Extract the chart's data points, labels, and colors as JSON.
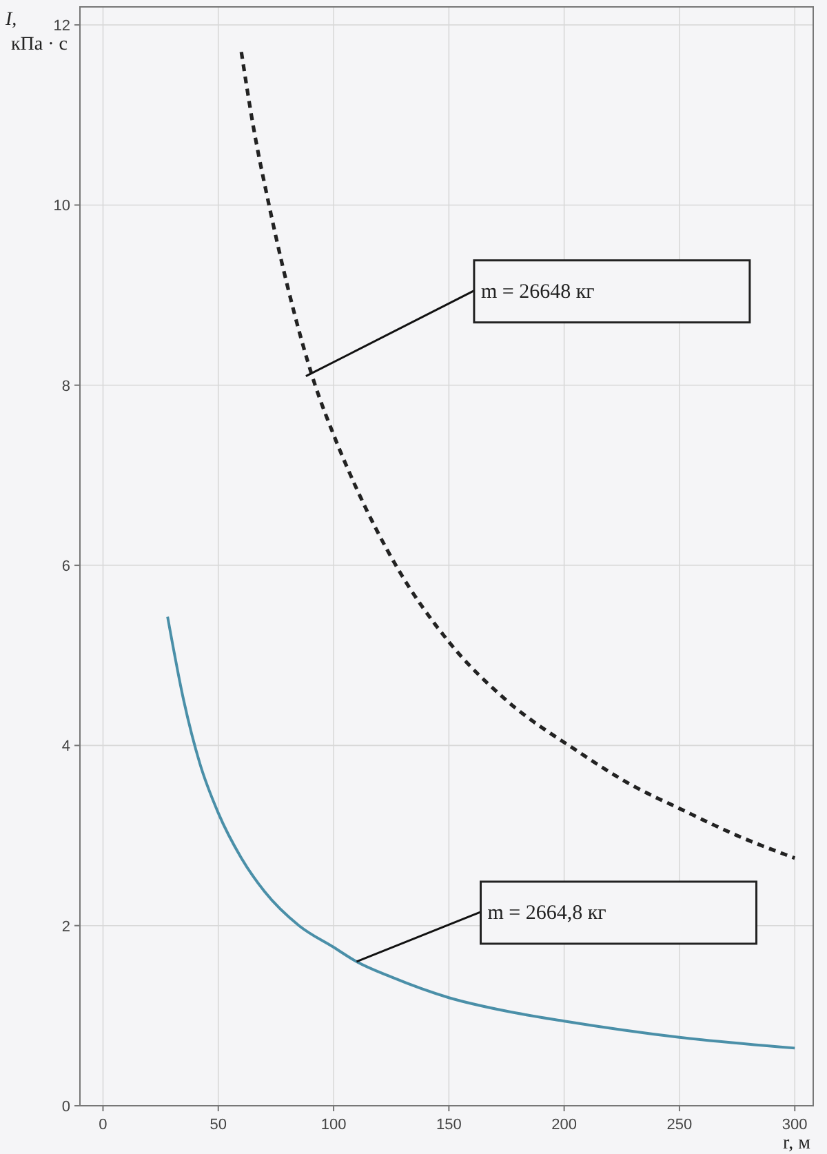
{
  "chart_data": {
    "type": "line",
    "xlabel": "r, м",
    "ylabel": "I, кПа · с",
    "xlim": [
      -10,
      308
    ],
    "ylim": [
      0,
      12.2
    ],
    "xticks": [
      0,
      50,
      100,
      150,
      200,
      250,
      300
    ],
    "yticks": [
      0,
      2,
      4,
      6,
      8,
      10,
      12
    ],
    "grid": true,
    "marker": "none",
    "series": [
      {
        "color": "#222222",
        "line_style": "dashed",
        "x": [
          60,
          65,
          72,
          80,
          92,
          100,
          110,
          127,
          150,
          175,
          205,
          230,
          250,
          275,
          300
        ],
        "values": [
          11.7,
          10.9,
          10,
          9.1,
          8,
          7.45,
          6.85,
          6,
          5.15,
          4.5,
          3.95,
          3.55,
          3.3,
          3,
          2.75
        ]
      },
      {
        "color": "#4a8fa8",
        "line_style": "solid",
        "x": [
          28,
          35,
          42,
          50,
          60,
          70,
          85,
          100,
          110,
          125,
          150,
          175,
          200,
          250,
          300
        ],
        "values": [
          5.43,
          4.5,
          3.8,
          3.25,
          2.75,
          2.38,
          2,
          1.76,
          1.6,
          1.43,
          1.2,
          1.05,
          0.94,
          0.76,
          0.64
        ]
      }
    ],
    "annotations": [
      {
        "text": "m = 26648 кг",
        "x": 88,
        "y": 8.1
      },
      {
        "text": "m = 2664,8 кг",
        "x": 110,
        "y": 1.6
      }
    ]
  }
}
